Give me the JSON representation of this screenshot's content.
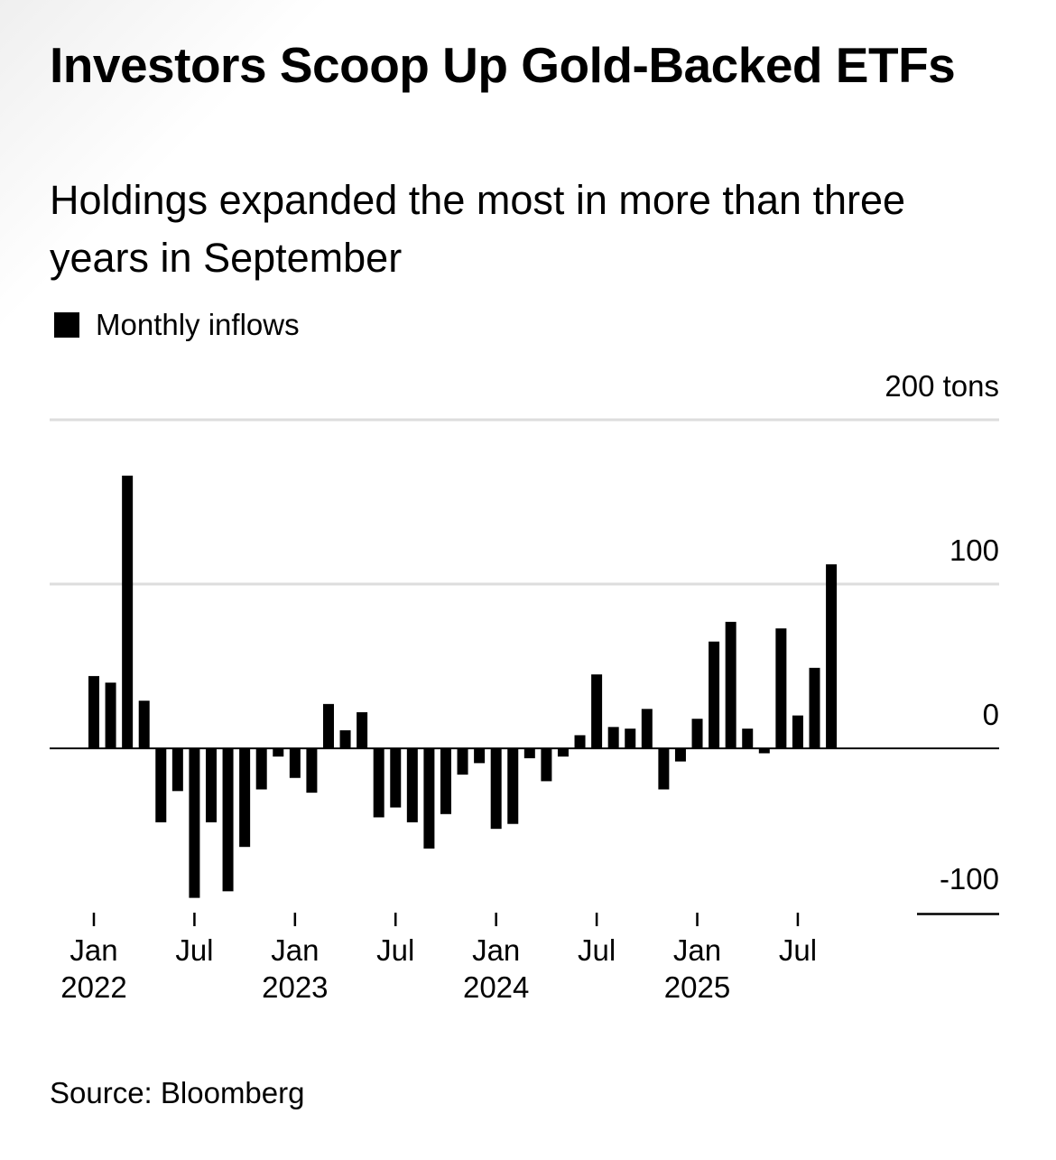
{
  "title": "Investors Scoop Up Gold-Backed ETFs",
  "subtitle": "Holdings expanded the most in more than three years in September",
  "source": "Source: Bloomberg",
  "colors": {
    "bar": "#000000",
    "grid": "#dddddd",
    "text": "#000000"
  },
  "chart_data": {
    "type": "bar",
    "title": "Investors Scoop Up Gold-Backed ETFs",
    "subtitle": "Holdings expanded the most in more than three years in September",
    "legend": [
      "Monthly inflows"
    ],
    "legend_position": "top-left",
    "ylabel": "tons",
    "ylim": [
      -100,
      200
    ],
    "yticks": [
      {
        "value": 200,
        "label": "200 tons"
      },
      {
        "value": 100,
        "label": "100"
      },
      {
        "value": 0,
        "label": "0"
      },
      {
        "value": -100,
        "label": "-100"
      }
    ],
    "xticks": [
      {
        "index": 0,
        "month": "Jan",
        "year": "2022"
      },
      {
        "index": 6,
        "month": "Jul",
        "year": ""
      },
      {
        "index": 12,
        "month": "Jan",
        "year": "2023"
      },
      {
        "index": 18,
        "month": "Jul",
        "year": ""
      },
      {
        "index": 24,
        "month": "Jan",
        "year": "2024"
      },
      {
        "index": 30,
        "month": "Jul",
        "year": ""
      },
      {
        "index": 36,
        "month": "Jan",
        "year": "2025"
      },
      {
        "index": 42,
        "month": "Jul",
        "year": ""
      }
    ],
    "categories": [
      "Jan 2022",
      "Feb 2022",
      "Mar 2022",
      "Apr 2022",
      "May 2022",
      "Jun 2022",
      "Jul 2022",
      "Aug 2022",
      "Sep 2022",
      "Oct 2022",
      "Nov 2022",
      "Dec 2022",
      "Jan 2023",
      "Feb 2023",
      "Mar 2023",
      "Apr 2023",
      "May 2023",
      "Jun 2023",
      "Jul 2023",
      "Aug 2023",
      "Sep 2023",
      "Oct 2023",
      "Nov 2023",
      "Dec 2023",
      "Jan 2024",
      "Feb 2024",
      "Mar 2024",
      "Apr 2024",
      "May 2024",
      "Jun 2024",
      "Jul 2024",
      "Aug 2024",
      "Sep 2024",
      "Oct 2024",
      "Nov 2024",
      "Dec 2024",
      "Jan 2025",
      "Feb 2025",
      "Mar 2025",
      "Apr 2025",
      "May 2025",
      "Jun 2025",
      "Jul 2025",
      "Aug 2025",
      "Sep 2025"
    ],
    "series": [
      {
        "name": "Monthly inflows",
        "values": [
          44,
          40,
          166,
          29,
          -45,
          -26,
          -91,
          -45,
          -87,
          -60,
          -25,
          -5,
          -18,
          -27,
          27,
          11,
          22,
          -42,
          -36,
          -45,
          -61,
          -40,
          -16,
          -9,
          -49,
          -46,
          -6,
          -20,
          -5,
          8,
          45,
          13,
          12,
          24,
          -25,
          -8,
          18,
          65,
          77,
          12,
          -3,
          73,
          20,
          49,
          112
        ]
      }
    ]
  }
}
